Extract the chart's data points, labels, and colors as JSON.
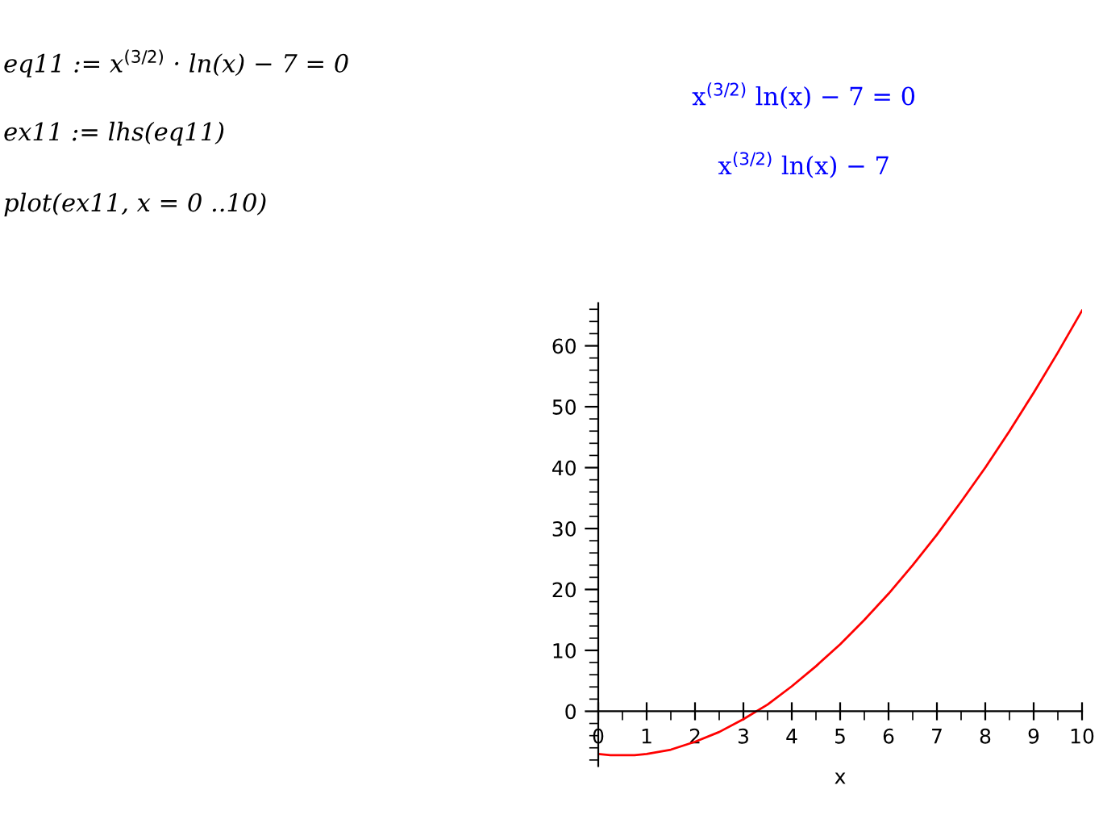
{
  "chart_data": {
    "type": "line",
    "xlabel": "x",
    "annotations": [
      "eq11 := x$^{(3/2)}$ · ln(x) − 7 = 0",
      "ex11 := lhs(eq11)",
      "plot(ex11, x = 0 ..10)",
      "x$^{(3/2)}$ ln(x) − 7 = 0",
      "x$^{(3/2)}$ ln(x) − 7"
    ],
    "x": [
      0,
      0.25,
      0.5,
      0.75,
      1,
      1.5,
      2,
      2.5,
      3,
      3.5,
      4,
      4.5,
      5,
      5.5,
      6,
      6.5,
      7,
      7.5,
      8,
      8.5,
      9,
      9.5,
      10
    ],
    "series": [
      {
        "color": "#ff0000",
        "values": [
          -7,
          -7.2,
          -7.2,
          -7.2,
          -7,
          -6.3,
          -5,
          -3.4,
          -1.3,
          1.1,
          4.1,
          7.4,
          11,
          15,
          19.3,
          24,
          29,
          34.4,
          40,
          46,
          52.3,
          58.9,
          65.8
        ]
      }
    ],
    "xlim": [
      0,
      10
    ],
    "ylim": [
      -9,
      67
    ],
    "xticks": [
      0,
      1,
      2,
      3,
      4,
      5,
      6,
      7,
      8,
      9,
      10
    ],
    "yticks": [
      0,
      10,
      20,
      30,
      40,
      50,
      60
    ],
    "grid": false,
    "legend": false,
    "marker": "none",
    "line_style": "solid"
  }
}
